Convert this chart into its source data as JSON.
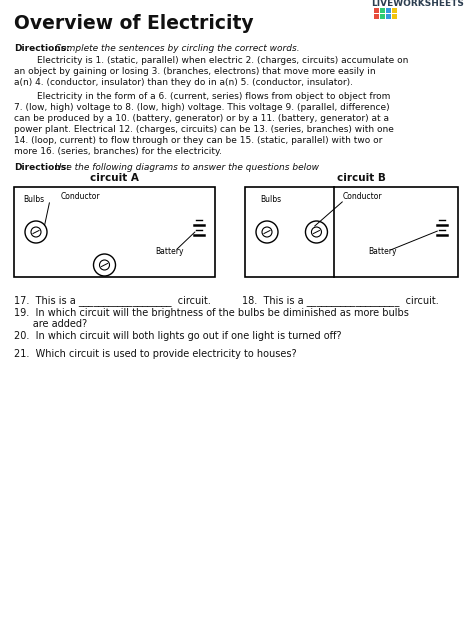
{
  "title": "Overview of Electricity",
  "bg_color": "#ffffff",
  "text_color": "#111111",
  "dir1_bold": "Directions:",
  "dir1_italic": " Complete the sentences by circling the correct words.",
  "para1_lines": [
    "        Electricity is 1. (static, parallel) when electric 2. (charges, circuits) accumulate on",
    "an object by gaining or losing 3. (branches, electrons) that move more easily in",
    "a(n) 4. (conductor, insulator) than they do in a(n) 5. (conductor, insulator)."
  ],
  "para2_line1": "        Electricity in the form of a 6. (current, series) flows from object to object from",
  "para2_lines": [
    "7. (low, high) voltage to 8. (low, high) voltage. This voltage 9. (parallel, difference)",
    "can be produced by a 10. (battery, generator) or by a 11. (battery, generator) at a",
    "power plant. Electrical 12. (charges, circuits) can be 13. (series, branches) with one",
    "14. (loop, current) to flow through or they can be 15. (static, parallel) with two or",
    "more 16. (series, branches) for the electricity."
  ],
  "dir2_bold": "Directions:",
  "dir2_italic": " Use the following diagrams to answer the questions below",
  "circuit_a": "circuit A",
  "circuit_b": "circuit B",
  "lbl_bulbs": "Bulbs",
  "lbl_conductor": "Conductor",
  "lbl_battery": "Battery",
  "q17": "17.  This is a ___________________  circuit.",
  "q18": "18.  This is a ___________________  circuit.",
  "q19a": "19.  In which circuit will the brightness of the bulbs be diminished as more bulbs",
  "q19b": "      are added?",
  "q20": "20.  In which circuit will both lights go out if one light is turned off?",
  "q21": "21.  Which circuit is used to provide electricity to houses?",
  "lw_text": "LIVEWORKSHEETS",
  "lw_colors": [
    "#e74c3c",
    "#2ecc71",
    "#3498db",
    "#f1c40f",
    "#e74c3c",
    "#2ecc71",
    "#3498db",
    "#f1c40f"
  ]
}
